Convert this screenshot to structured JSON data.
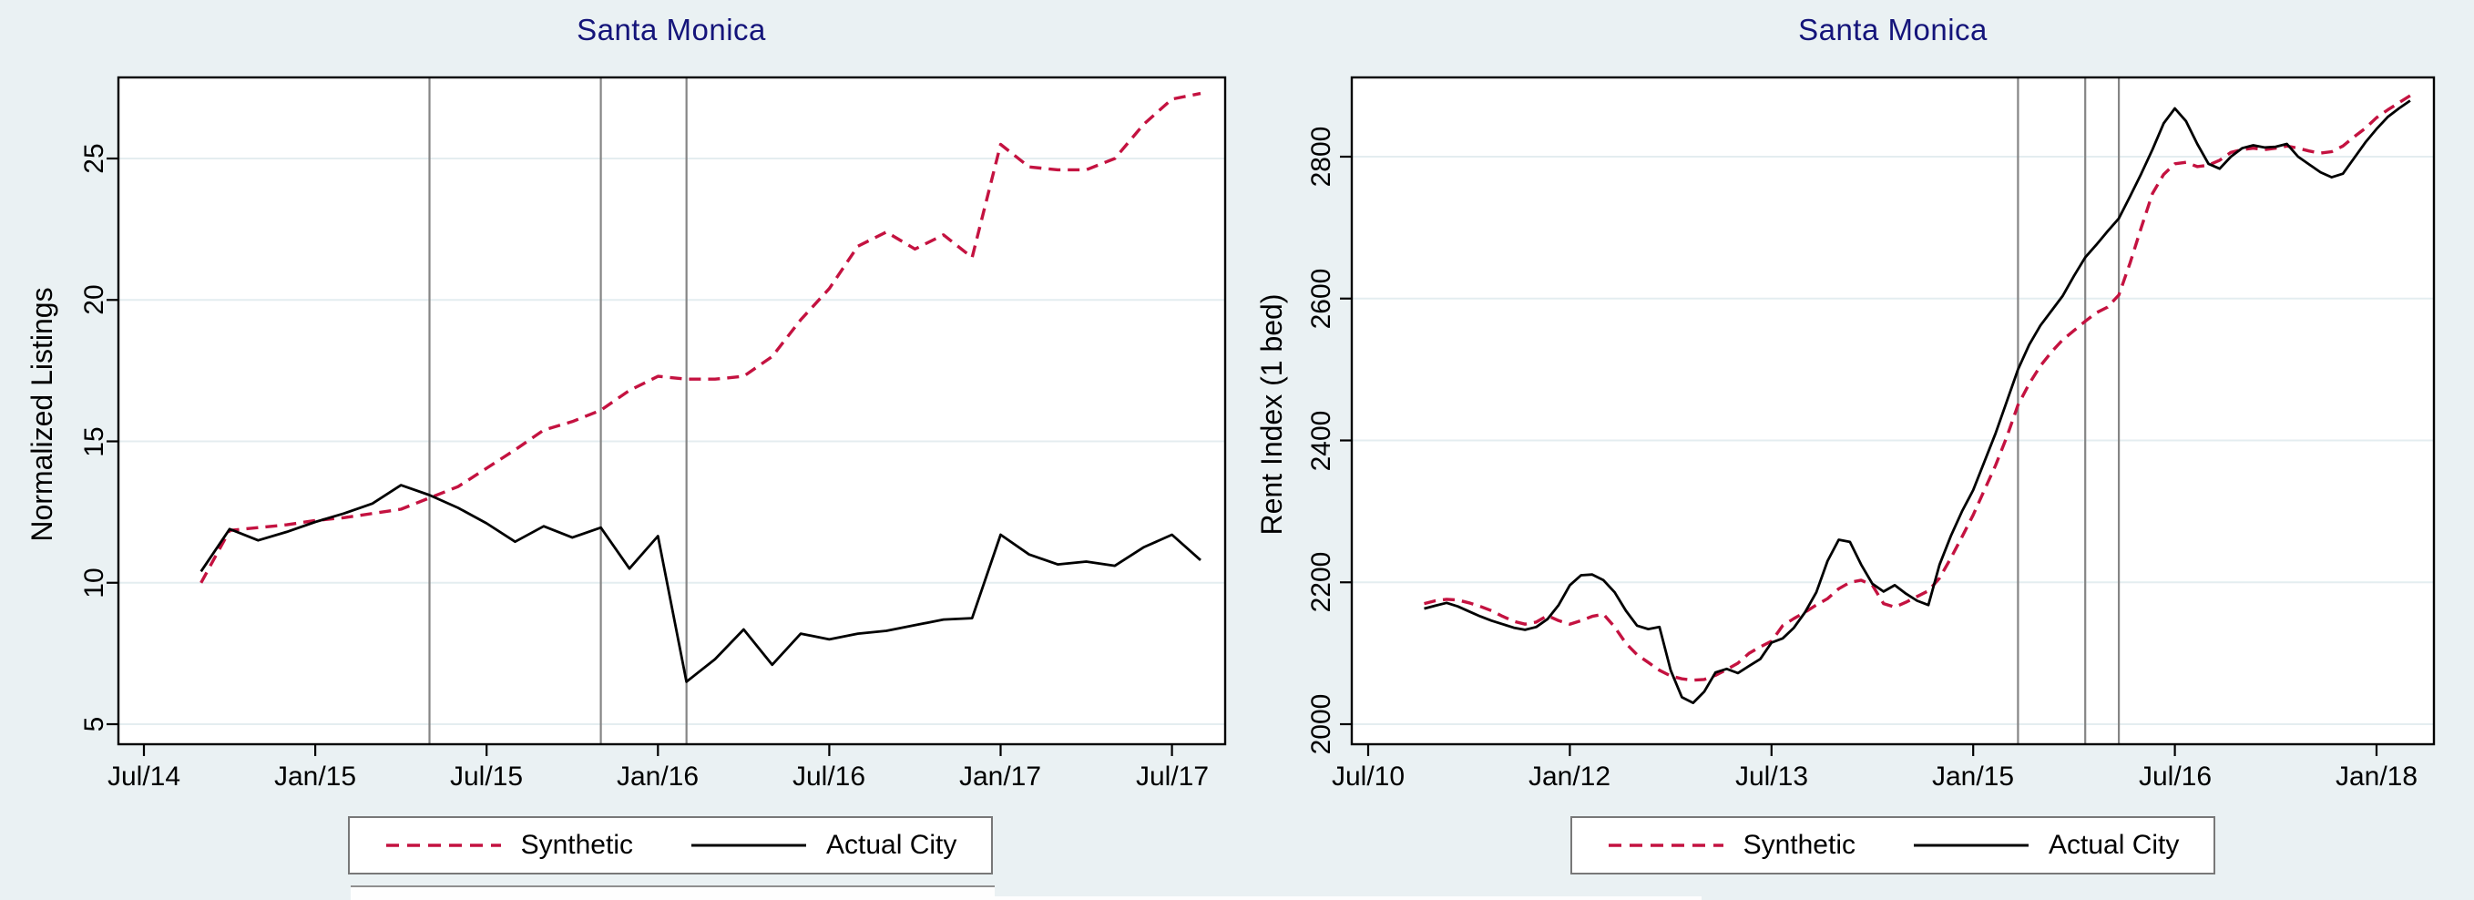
{
  "figure": {
    "background_color": "#eaf1f3",
    "plot_background_color": "#ffffff",
    "title_color": "#14147a",
    "gridline_color": "#e4edf0",
    "axis_color": "#000000"
  },
  "chart_data": [
    {
      "type": "line",
      "title": "Santa Monica",
      "xlabel": "",
      "ylabel": "Normalized Listings",
      "x_unit": "months since Jul/2014",
      "x_tick_labels": [
        "Jul/14",
        "Jan/15",
        "Jul/15",
        "Jan/16",
        "Jul/16",
        "Jan/17",
        "Jul/17"
      ],
      "x_tick_months": [
        0,
        6,
        12,
        18,
        24,
        30,
        36
      ],
      "y_ticks": [
        5,
        10,
        15,
        20,
        25
      ],
      "y_tick_labels": [
        "5",
        "10",
        "15",
        "20",
        "25"
      ],
      "ylim": [
        4.3,
        27.9
      ],
      "xlim_months": [
        -0.9,
        38.5
      ],
      "grid": true,
      "legend_position": "bottom-center",
      "series": [
        {
          "name": "Synthetic",
          "style": "dashed",
          "color": "#c41240",
          "start_month": 2,
          "start_label": "Sep/14",
          "values": [
            10.0,
            11.85,
            11.95,
            12.05,
            12.2,
            12.3,
            12.45,
            12.6,
            13.0,
            13.4,
            14.05,
            14.7,
            15.4,
            15.7,
            16.1,
            16.8,
            17.3,
            17.2,
            17.2,
            17.3,
            18.0,
            19.3,
            20.4,
            21.9,
            22.4,
            21.8,
            22.3,
            21.5,
            25.5,
            24.7,
            24.6,
            24.6,
            25.0,
            26.2,
            27.1,
            27.3
          ]
        },
        {
          "name": "Actual City",
          "style": "solid",
          "color": "#000000",
          "start_month": 2,
          "start_label": "Sep/14",
          "values": [
            10.4,
            11.9,
            11.5,
            11.8,
            12.15,
            12.45,
            12.8,
            13.45,
            13.1,
            12.65,
            12.1,
            11.45,
            12.0,
            11.6,
            11.95,
            10.5,
            11.65,
            6.5,
            7.3,
            8.35,
            7.1,
            8.2,
            8.0,
            8.2,
            8.3,
            8.5,
            8.7,
            8.75,
            11.7,
            11.0,
            10.65,
            10.75,
            10.6,
            11.25,
            11.7,
            10.8
          ]
        }
      ],
      "event_lines": {
        "months": [
          10,
          16,
          19
        ],
        "dates": [
          "May/15",
          "Nov/15",
          "Feb/16"
        ],
        "color": "#858585"
      }
    },
    {
      "type": "line",
      "title": "Santa Monica",
      "xlabel": "",
      "ylabel": "Rent Index (1 bed)",
      "x_unit": "months since Jul/2010",
      "x_tick_labels": [
        "Jul/10",
        "Jan/12",
        "Jul/13",
        "Jan/15",
        "Jul/16",
        "Jan/18"
      ],
      "x_tick_months": [
        0,
        18,
        36,
        54,
        72,
        90
      ],
      "y_ticks": [
        2000,
        2200,
        2400,
        2600,
        2800
      ],
      "y_tick_labels": [
        "2000",
        "2200",
        "2400",
        "2600",
        "2800"
      ],
      "ylim": [
        1972,
        2912
      ],
      "xlim_months": [
        -1.5,
        95.1
      ],
      "grid": true,
      "legend_position": "bottom-center",
      "series": [
        {
          "name": "Synthetic",
          "style": "dashed",
          "color": "#c41240",
          "start_month": 5,
          "start_label": "Dec/10",
          "values": [
            2170,
            2174,
            2176,
            2175,
            2171,
            2166,
            2160,
            2152,
            2145,
            2141,
            2144,
            2153,
            2146,
            2141,
            2146,
            2152,
            2155,
            2137,
            2114,
            2098,
            2087,
            2076,
            2068,
            2064,
            2062,
            2063,
            2069,
            2077,
            2086,
            2100,
            2109,
            2117,
            2139,
            2149,
            2158,
            2168,
            2177,
            2191,
            2200,
            2203,
            2196,
            2170,
            2165,
            2172,
            2180,
            2188,
            2206,
            2234,
            2264,
            2295,
            2330,
            2365,
            2405,
            2450,
            2480,
            2505,
            2525,
            2542,
            2555,
            2568,
            2580,
            2588,
            2605,
            2650,
            2700,
            2748,
            2775,
            2790,
            2792,
            2786,
            2788,
            2795,
            2806,
            2810,
            2812,
            2810,
            2812,
            2815,
            2812,
            2808,
            2805,
            2807,
            2815,
            2828,
            2840,
            2855,
            2866,
            2876,
            2886
          ]
        },
        {
          "name": "Actual City",
          "style": "solid",
          "color": "#000000",
          "start_month": 5,
          "start_label": "Dec/10",
          "values": [
            2163,
            2167,
            2171,
            2166,
            2159,
            2152,
            2146,
            2141,
            2136,
            2133,
            2137,
            2148,
            2168,
            2196,
            2210,
            2211,
            2203,
            2186,
            2160,
            2139,
            2134,
            2137,
            2076,
            2038,
            2030,
            2046,
            2073,
            2078,
            2072,
            2082,
            2092,
            2115,
            2121,
            2136,
            2158,
            2186,
            2230,
            2260,
            2257,
            2225,
            2198,
            2187,
            2196,
            2184,
            2174,
            2168,
            2225,
            2265,
            2300,
            2330,
            2370,
            2410,
            2455,
            2500,
            2535,
            2562,
            2583,
            2604,
            2632,
            2658,
            2676,
            2695,
            2713,
            2744,
            2776,
            2810,
            2847,
            2868,
            2850,
            2818,
            2790,
            2783,
            2800,
            2812,
            2816,
            2813,
            2814,
            2818,
            2800,
            2789,
            2778,
            2771,
            2776,
            2798,
            2820,
            2839,
            2856,
            2868,
            2879
          ]
        }
      ],
      "event_lines": {
        "months": [
          58,
          64,
          67
        ],
        "dates": [
          "May/15",
          "Nov/15",
          "Feb/16"
        ],
        "color": "#858585"
      }
    }
  ]
}
